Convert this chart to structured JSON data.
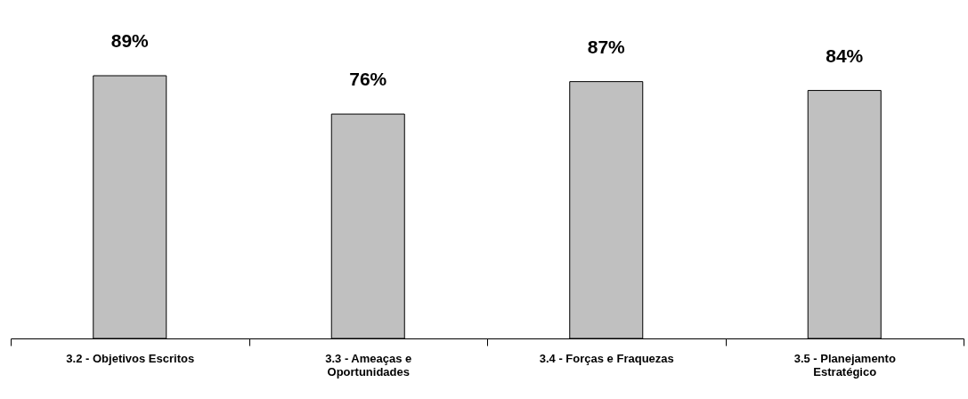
{
  "chart_data": {
    "type": "bar",
    "categories": [
      "3.2 - Objetivos Escritos",
      "3.3 - Ameaças e Oportunidades",
      "3.4 - Forças e Fraquezas",
      "3.5 - Planejamento Estratégico"
    ],
    "values": [
      89,
      76,
      87,
      84
    ],
    "value_labels": [
      "89%",
      "76%",
      "87%",
      "84%"
    ],
    "color": "#c0c0c0",
    "grid": false
  }
}
